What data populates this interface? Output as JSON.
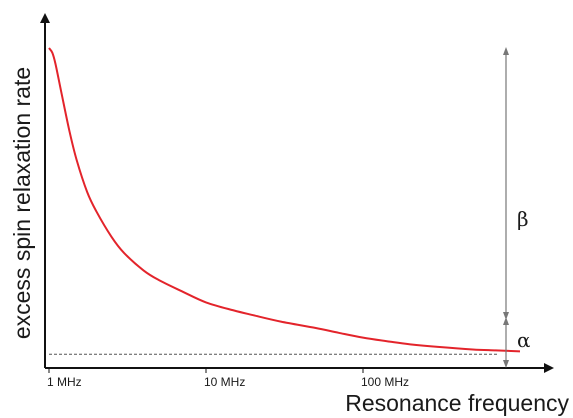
{
  "chart_data": {
    "type": "line",
    "title": "",
    "xlabel": "Resonance frequency",
    "ylabel": "excess spin relaxation rate",
    "x_scale": "log",
    "x_ticks": [
      {
        "value": 1,
        "label": "1 MHz"
      },
      {
        "value": 10,
        "label": "10 MHz"
      },
      {
        "value": 100,
        "label": "100 MHz"
      }
    ],
    "y_ticks": [],
    "ylim": [
      0,
      1
    ],
    "xlim": [
      1,
      1000
    ],
    "series": [
      {
        "color": "#e3242b",
        "x": [
          1,
          1.05,
          1.1,
          1.2,
          1.35,
          1.5,
          1.75,
          2,
          2.5,
          3,
          4,
          5,
          7,
          10,
          15,
          20,
          30,
          50,
          70,
          100,
          150,
          200,
          300,
          500,
          700,
          1000
        ],
        "y": [
          1.0,
          0.985,
          0.95,
          0.86,
          0.74,
          0.65,
          0.55,
          0.49,
          0.41,
          0.36,
          0.305,
          0.275,
          0.24,
          0.205,
          0.18,
          0.165,
          0.145,
          0.125,
          0.11,
          0.095,
          0.082,
          0.074,
          0.066,
          0.058,
          0.055,
          0.052
        ]
      }
    ],
    "reference_line": {
      "style": "dashed",
      "color": "#555555",
      "y": 0.043
    },
    "annotations": [
      {
        "text": "β",
        "meaning": "range above baseline"
      },
      {
        "text": "α",
        "meaning": "baseline offset"
      }
    ],
    "grid": false,
    "legend": "none"
  }
}
